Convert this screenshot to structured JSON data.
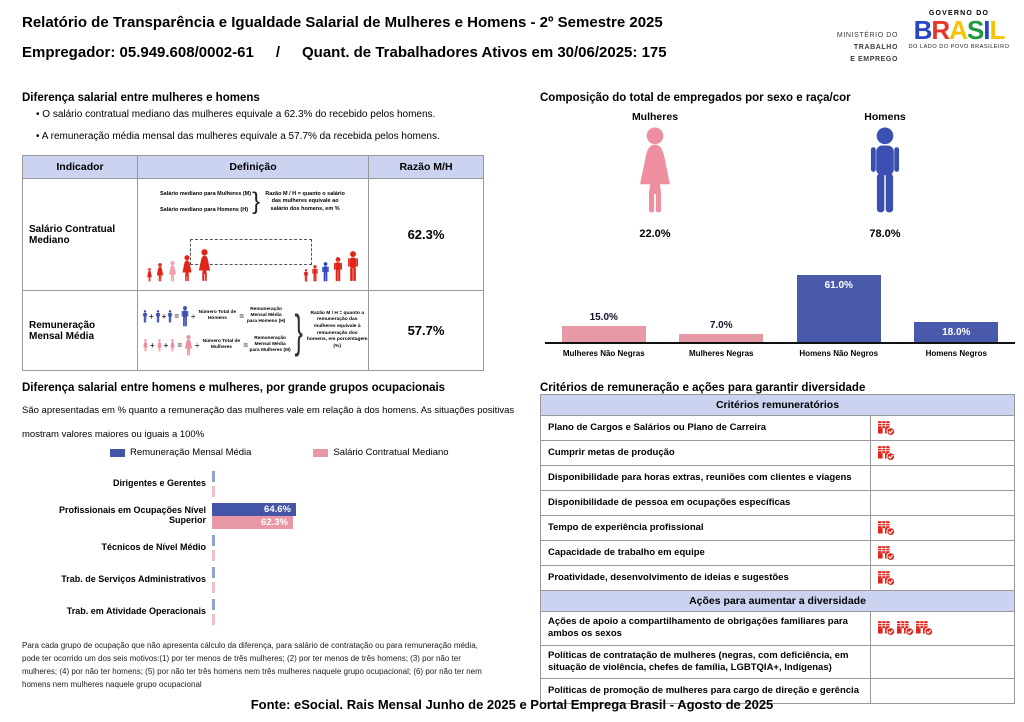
{
  "header": {
    "title": "Relatório de Transparência e Igualdade Salarial de Mulheres e Homens - 2º Semestre 2025",
    "subtitle_left": "Empregador: 05.949.608/0002-61",
    "subtitle_sep": "/",
    "subtitle_right": "Quant. de Trabalhadores Ativos em 30/06/2025: 175",
    "ministry_lines": [
      "MINISTÉRIO DO",
      "TRABALHO",
      "E EMPREGO"
    ],
    "gov_top": "GOVERNO DO",
    "gov_name": "BRASIL",
    "gov_name_colors": [
      "#2845c6",
      "#e5352c",
      "#f8c300",
      "#209a43",
      "#2845c6",
      "#f8c300"
    ],
    "gov_bottom": "DO LADO DO POVO BRASILEIRO"
  },
  "salary_gap": {
    "title": "Diferença salarial entre mulheres e homens",
    "bullets": [
      "O salário contratual mediano das mulheres equivale a 62.3% do recebido pelos homens.",
      "A remuneração média mensal das mulheres equivale a 57.7% da recebida pelos homens."
    ],
    "table": {
      "headers": [
        "Indicador",
        "Definição",
        "Razão M/H"
      ],
      "rows": [
        {
          "indicator": "Salário Contratual Mediano",
          "ratio": "62.3%",
          "def_label_women": "Salário mediano para Mulheres (M)",
          "def_label_men": "Salário mediano para Homens (H)",
          "def_note": "Razão M / H = quanto o salário das mulheres equivale ao salário dos homens, em %"
        },
        {
          "indicator": "Remuneração Mensal Média",
          "ratio": "57.7%",
          "men_divisor": "Número Total de Homens",
          "men_result": "Remuneração Mensal Média para Homens (H)",
          "women_divisor": "Número Total de Mulheres",
          "women_result": "Remuneração Mensal Média para Mulheres (M)",
          "def_note": "Razão M / H = quanto a remuneração das mulheres equivale à remuneração dos homens, em porcentagem (%)"
        }
      ]
    }
  },
  "occupational": {
    "title": "Diferença salarial entre homens e mulheres, por grande grupos ocupacionais",
    "description": "São apresentadas em % quanto a remuneração das mulheres vale em relação à dos homens. As situações positivas mostram valores maiores ou iguais a 100%",
    "legend": [
      {
        "label": "Remuneração Mensal Média",
        "color": "#4355a7"
      },
      {
        "label": "Salário Contratual Mediano",
        "color": "#e897a4"
      }
    ],
    "categories": [
      "Dirigentes e Gerentes",
      "Profissionais em Ocupações Nível Superior",
      "Técnicos de Nível Médio",
      "Trab. de Serviços Administrativos",
      "Trab. em Atividade Operacionais"
    ],
    "series": [
      {
        "name": "Remuneração Mensal Média",
        "color": "#4355a7",
        "values": [
          null,
          64.6,
          null,
          null,
          null
        ],
        "labels": [
          null,
          "64.6%",
          null,
          null,
          null
        ]
      },
      {
        "name": "Salário Contratual Mediano",
        "color": "#e897a4",
        "values": [
          null,
          62.3,
          null,
          null,
          null
        ],
        "labels": [
          null,
          "62.3%",
          null,
          null,
          null
        ]
      }
    ],
    "footnote": "Para cada grupo de ocupação que não apresenta cálculo da diferença, para salário de contratação ou para remuneração média, pode ter ocorrido um dos seis motivos:(1) por ter menos de três mulheres; (2) por ter menos de três homens; (3) por não ter mulheres; (4) por não ter homens; (5) por não ter três homens nem três mulheres naquele grupo ocupacional; (6) por não ter nem homens nem mulheres naquele grupo ocupacional"
  },
  "composition": {
    "title": "Composição do total de empregados por sexo e raça/cor",
    "female_label": "Mulheres",
    "female_value": "22.0%",
    "male_label": "Homens",
    "male_value": "78.0%",
    "female_color": "#ee8fa0",
    "male_color": "#3c50b1",
    "bars": [
      {
        "label": "Mulheres Não Negras",
        "value": 15.0,
        "display": "15.0%",
        "color": "#e59aa5",
        "label_inside": false
      },
      {
        "label": "Mulheres Negras",
        "value": 7.0,
        "display": "7.0%",
        "color": "#e59aa5",
        "label_inside": false
      },
      {
        "label": "Homens Não Negros",
        "value": 61.0,
        "display": "61.0%",
        "color": "#4a5aab",
        "label_inside": true
      },
      {
        "label": "Homens Negros",
        "value": 18.0,
        "display": "18.0%",
        "color": "#4a5aab",
        "label_inside": true
      }
    ]
  },
  "criteria": {
    "title": "Critérios de remuneração e ações para garantir diversidade",
    "icon_color": "#e1251b",
    "sections": [
      {
        "header": "Critérios remuneratórios",
        "rows": [
          {
            "label": "Plano de Cargos e Salários ou Plano de Carreira",
            "icons": 1
          },
          {
            "label": "Cumprir metas de produção",
            "icons": 1
          },
          {
            "label": "Disponibilidade para horas extras, reuniões com clientes e viagens",
            "icons": 0
          },
          {
            "label": "Disponibilidade de pessoa em ocupações específicas",
            "icons": 0
          },
          {
            "label": "Tempo de experiência profissional",
            "icons": 1
          },
          {
            "label": "Capacidade de trabalho em equipe",
            "icons": 1
          },
          {
            "label": "Proatividade, desenvolvimento de ideias e sugestões",
            "icons": 1
          }
        ]
      },
      {
        "header": "Ações para aumentar a diversidade",
        "rows": [
          {
            "label": "Ações de apoio a compartilhamento de obrigações familiares para ambos os sexos",
            "icons": 3
          },
          {
            "label": "Políticas de contratação de mulheres (negras, com deficiência, em situação de violência, chefes de família, LGBTQIA+, Indígenas)",
            "icons": 0
          },
          {
            "label": "Políticas de promoção de mulheres para cargo de direção e gerência",
            "icons": 0
          }
        ]
      }
    ]
  },
  "footer": {
    "source": "Fonte: eSocial. Rais Mensal Junho de 2025 e Portal Emprega Brasil - Agosto de 2025"
  },
  "chart_data": [
    {
      "type": "bar",
      "title": "Composição do total de empregados por sexo",
      "categories": [
        "Mulheres",
        "Homens"
      ],
      "values": [
        22.0,
        78.0
      ],
      "unit": "%"
    },
    {
      "type": "bar",
      "title": "Composição do total de empregados por sexo e raça/cor",
      "categories": [
        "Mulheres Não Negras",
        "Mulheres Negras",
        "Homens Não Negros",
        "Homens Negros"
      ],
      "values": [
        15.0,
        7.0,
        61.0,
        18.0
      ],
      "unit": "%",
      "ylim": [
        0,
        80
      ],
      "grid": false
    },
    {
      "type": "bar",
      "orientation": "horizontal",
      "title": "Diferença salarial entre homens e mulheres, por grande grupos ocupacionais",
      "categories": [
        "Dirigentes e Gerentes",
        "Profissionais em Ocupações Nível Superior",
        "Técnicos de Nível Médio",
        "Trab. de Serviços Administrativos",
        "Trab. em Atividade Operacionais"
      ],
      "series": [
        {
          "name": "Remuneração Mensal Média",
          "values": [
            null,
            64.6,
            null,
            null,
            null
          ]
        },
        {
          "name": "Salário Contratual Mediano",
          "values": [
            null,
            62.3,
            null,
            null,
            null
          ]
        }
      ],
      "unit": "%",
      "legend_position": "top"
    }
  ]
}
